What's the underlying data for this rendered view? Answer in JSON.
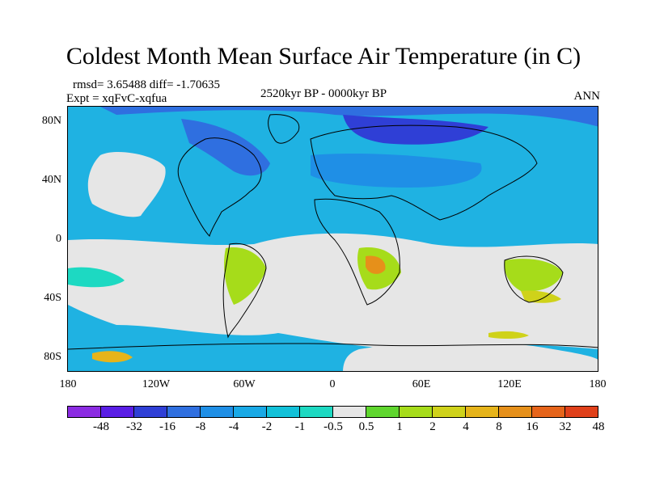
{
  "title": "Coldest Month Mean Surface Air Temperature (in C)",
  "stats": "rmsd= 3.65488 diff= -1.70635",
  "experiment": "Expt = xqFvC-xqfua",
  "period": "2520kyr BP - 0000kyr BP",
  "season": "ANN",
  "map": {
    "lat_ticks": [
      "80N",
      "40N",
      "0",
      "40S",
      "80S"
    ],
    "lon_ticks": [
      "180",
      "120W",
      "60W",
      "0",
      "60E",
      "120E",
      "180"
    ]
  },
  "colorbar": {
    "labels": [
      "-48",
      "-32",
      "-16",
      "-8",
      "-4",
      "-2",
      "-1",
      "-0.5",
      "0.5",
      "1",
      "2",
      "4",
      "8",
      "16",
      "32",
      "48"
    ],
    "colors": [
      "#8b2be2",
      "#5a1ee6",
      "#2f3fd6",
      "#2f6fe0",
      "#1f8fe6",
      "#19a9e6",
      "#12c1d9",
      "#1dd9c2",
      "#e6e6e6",
      "#5fd62e",
      "#a6dc1a",
      "#cfd21a",
      "#e6b41a",
      "#e6901a",
      "#e6641a",
      "#e0401a"
    ]
  }
}
